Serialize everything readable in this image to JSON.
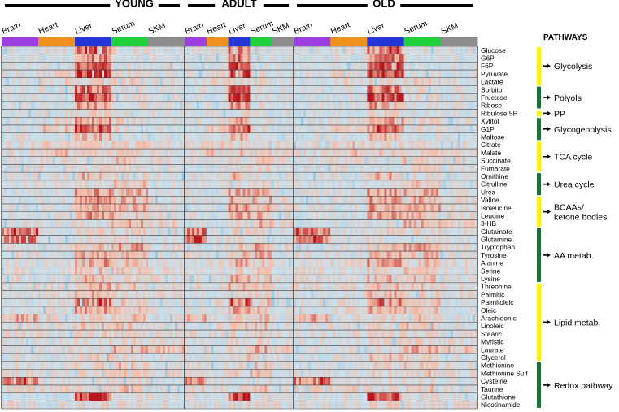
{
  "chart_data": {
    "type": "heatmap",
    "title": "",
    "groups": [
      "YOUNG",
      "ADULT",
      "OLD"
    ],
    "tissues": [
      "Brain",
      "Heart",
      "Liver",
      "Serum",
      "SKM"
    ],
    "colors": {
      "brain": "#9b3fe0",
      "heart": "#f0901e",
      "liver": "#2436d8",
      "serum": "#1fd13a",
      "skm": "#8c8c8c",
      "low": "#8fc3e3",
      "mid": "#cfdfe8",
      "high": "#b8161c",
      "pathway_yellow": "#f7ef17",
      "pathway_green": "#1f6f3c"
    },
    "metabolites": [
      "Glucose",
      "G6P",
      "F6P",
      "Pyruvate",
      "Lactate",
      "Sorbitol",
      "Fructose",
      "Ribose",
      "Ribulose 5P",
      "Xylitol",
      "G1P",
      "Maltose",
      "Citrate",
      "Malate",
      "Succinate",
      "Fumarate",
      "Ornithine",
      "Citrulline",
      "Urea",
      "Valine",
      "Isoleucine",
      "Leucine",
      "3-HB",
      "Glutamate",
      "Glutamine",
      "Tryptophan",
      "Tyrosine",
      "Alanine",
      "Serine",
      "Lysine",
      "Threonine",
      "Palmitic",
      "Palmitoleic",
      "Oleic",
      "Arachidonic",
      "Linoleic",
      "Stearic",
      "Myristic",
      "Laurate",
      "Glycerol",
      "Methionine",
      "Methionine Sulf",
      "Cysteine",
      "Taurine",
      "Glutathione",
      "Nicotinamide"
    ],
    "pathways_title": "PATHWAYS",
    "pathways": [
      {
        "label": "Glycolysis",
        "start": 0,
        "end": 4,
        "color": "yellow"
      },
      {
        "label": "Polyols",
        "start": 5,
        "end": 7,
        "color": "green"
      },
      {
        "label": "PP",
        "start": 8,
        "end": 8,
        "color": "yellow"
      },
      {
        "label": "Glycogenolysis",
        "start": 9,
        "end": 11,
        "color": "green"
      },
      {
        "label": "TCA cycle",
        "start": 12,
        "end": 15,
        "color": "yellow"
      },
      {
        "label": "Urea cycle",
        "start": 16,
        "end": 18,
        "color": "green"
      },
      {
        "label": "BCAAs/",
        "label2": "ketone bodies",
        "start": 19,
        "end": 22,
        "color": "yellow"
      },
      {
        "label": "AA metab.",
        "start": 23,
        "end": 29,
        "color": "green"
      },
      {
        "label": "Lipid metab.",
        "start": 30,
        "end": 39,
        "color": "yellow"
      },
      {
        "label": "Redox pathway",
        "start": 40,
        "end": 45,
        "color": "green"
      }
    ],
    "value_range": [
      -1,
      1
    ],
    "columns_per_tissue": {
      "YOUNG": 15,
      "ADULT": 9,
      "OLD": 15
    },
    "tissue_profiles": {
      "Brain": [
        0,
        0,
        0,
        0,
        0,
        0,
        0,
        0,
        0,
        0,
        0,
        0,
        0.1,
        0.1,
        0,
        0,
        0,
        0,
        0,
        0,
        0,
        0,
        0,
        0.6,
        0.6,
        0,
        0.1,
        0,
        0.1,
        0.1,
        0.1,
        0,
        0,
        0,
        0.4,
        0,
        0.1,
        0,
        0,
        0,
        0.1,
        0.1,
        0.6,
        0.2,
        0,
        0.1
      ],
      "Heart": [
        0.1,
        0,
        0,
        0.2,
        0.2,
        0,
        0,
        0,
        0,
        0.1,
        0.3,
        0,
        0.3,
        0.3,
        0.1,
        0.1,
        0,
        0,
        0,
        0,
        0,
        0,
        0,
        0,
        0,
        0,
        0,
        0.1,
        0,
        0,
        0.1,
        0.1,
        0.1,
        0.1,
        0.1,
        0.1,
        0.1,
        0,
        0.1,
        0,
        0,
        0,
        0.1,
        0.2,
        0,
        0
      ],
      "Liver": [
        0.6,
        0.6,
        0.7,
        0.8,
        0.2,
        0.7,
        0.8,
        0.5,
        0.2,
        0.5,
        0.6,
        0.4,
        0.2,
        0.3,
        0.1,
        0.1,
        0.4,
        0.1,
        0.5,
        0.5,
        0.5,
        0.5,
        0.1,
        0.2,
        0.1,
        0.3,
        0.4,
        0.5,
        0.3,
        0.4,
        0.4,
        0.4,
        0.6,
        0.5,
        0.2,
        0.3,
        0.2,
        0.2,
        0.1,
        0.3,
        0.2,
        0.2,
        0.1,
        0.1,
        0.8,
        0.2
      ],
      "Serum": [
        0.1,
        0,
        0,
        0.1,
        0.2,
        0.1,
        0.1,
        0.1,
        0,
        0.2,
        0.1,
        0,
        0.2,
        0.2,
        0.3,
        0.2,
        0.1,
        0.3,
        0.4,
        0.4,
        0.4,
        0.4,
        0.4,
        0.2,
        0.1,
        0.5,
        0.4,
        0.3,
        0.3,
        0.3,
        0.3,
        0.2,
        0.3,
        0.3,
        0.3,
        0.3,
        0.2,
        0.2,
        0.4,
        0.2,
        0.3,
        0.3,
        0.1,
        0.3,
        0.1,
        0.1
      ],
      "SKM": [
        0,
        0,
        0,
        0,
        0.1,
        0,
        0,
        0,
        0,
        0,
        0,
        0,
        0.1,
        0.1,
        0.1,
        0,
        0,
        0,
        0,
        0.1,
        0.1,
        0.1,
        0.2,
        0,
        0,
        0.1,
        0,
        0.1,
        0.1,
        0.1,
        0.1,
        0.1,
        0,
        0,
        0,
        0,
        0.1,
        0.1,
        0.3,
        0,
        0.1,
        0.1,
        0,
        0,
        0,
        0.1
      ]
    }
  }
}
